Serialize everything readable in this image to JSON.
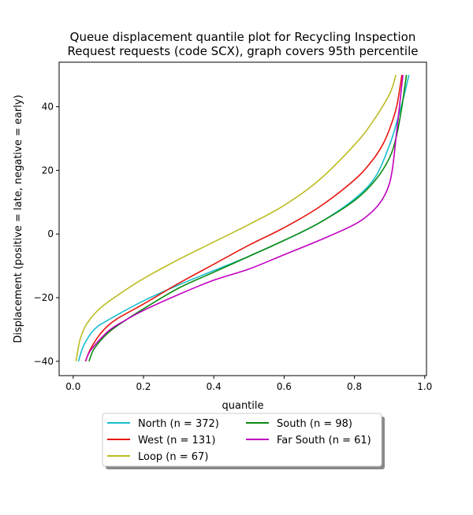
{
  "chart_data": {
    "type": "line",
    "title_lines": [
      "Queue displacement quantile plot for Recycling Inspection",
      "Request  requests (code SCX), graph covers 95th percentile"
    ],
    "xlabel": "quantile",
    "ylabel": "Displacement (positive = late, negative = early)",
    "xlim": [
      -0.04,
      1.005
    ],
    "ylim": [
      -44.5,
      54
    ],
    "x_ticks": [
      0.0,
      0.2,
      0.4,
      0.6,
      0.8,
      1.0
    ],
    "x_tick_labels": [
      "0.0",
      "0.2",
      "0.4",
      "0.6",
      "0.8",
      "1.0"
    ],
    "y_ticks": [
      -40,
      -20,
      0,
      20,
      40
    ],
    "y_tick_labels": [
      "−40",
      "−20",
      "0",
      "20",
      "40"
    ],
    "grid": false,
    "legend_position": "below plot, two columns",
    "series": [
      {
        "name": "North (n = 372)",
        "color": "#17becf",
        "x": [
          0.015,
          0.03,
          0.06,
          0.1,
          0.2,
          0.3,
          0.4,
          0.5,
          0.6,
          0.7,
          0.8,
          0.86,
          0.9,
          0.92,
          0.94,
          0.955
        ],
        "y": [
          -40,
          -35,
          -30,
          -27,
          -21,
          -16,
          -11.5,
          -7,
          -2,
          3.5,
          11,
          18,
          28,
          35,
          43,
          50
        ]
      },
      {
        "name": "West (n = 131)",
        "color": "#e8160f",
        "x": [
          0.035,
          0.05,
          0.08,
          0.12,
          0.2,
          0.3,
          0.4,
          0.5,
          0.6,
          0.7,
          0.8,
          0.85,
          0.88,
          0.9,
          0.92,
          0.935
        ],
        "y": [
          -40,
          -36,
          -31,
          -27,
          -22,
          -15.5,
          -9.5,
          -3.5,
          2,
          8.5,
          17,
          23,
          28,
          33,
          40,
          50
        ]
      },
      {
        "name": "Loop (n = 67)",
        "color": "#bcbd22",
        "x": [
          0.008,
          0.02,
          0.04,
          0.08,
          0.15,
          0.2,
          0.3,
          0.4,
          0.5,
          0.6,
          0.7,
          0.8,
          0.85,
          0.9,
          0.918
        ],
        "y": [
          -40,
          -33,
          -28,
          -23,
          -17.5,
          -14,
          -8,
          -2.5,
          3,
          9,
          17,
          28,
          35,
          44,
          50
        ]
      },
      {
        "name": "South (n = 98)",
        "color": "#0b8a12",
        "x": [
          0.045,
          0.06,
          0.1,
          0.15,
          0.2,
          0.3,
          0.4,
          0.5,
          0.6,
          0.7,
          0.8,
          0.86,
          0.9,
          0.92,
          0.935,
          0.948
        ],
        "y": [
          -40,
          -36,
          -31,
          -27,
          -23.5,
          -17,
          -12,
          -7,
          -2,
          3.5,
          10.5,
          17,
          24,
          31,
          40,
          50
        ]
      },
      {
        "name": "Far South (n = 61)",
        "color": "#bf00bf",
        "x": [
          0.035,
          0.05,
          0.1,
          0.15,
          0.2,
          0.3,
          0.4,
          0.5,
          0.6,
          0.7,
          0.8,
          0.85,
          0.88,
          0.9,
          0.91,
          0.92,
          0.93,
          0.938
        ],
        "y": [
          -40,
          -36.5,
          -30.5,
          -27,
          -24,
          -19,
          -14.5,
          -11,
          -6.5,
          -2,
          3,
          7,
          11,
          16,
          22,
          32,
          42,
          50
        ]
      }
    ]
  }
}
